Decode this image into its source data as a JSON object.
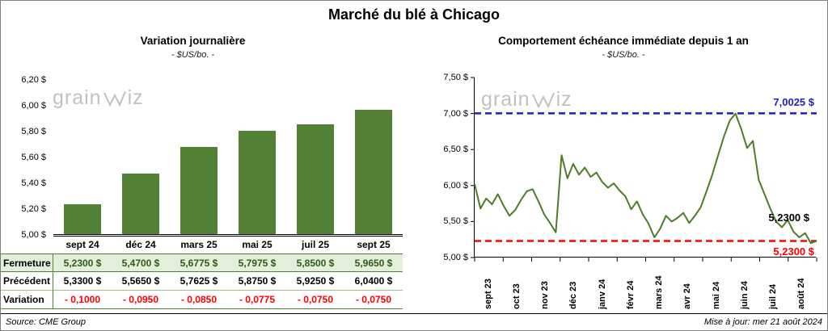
{
  "page_title": "Marché du blé à Chicago",
  "watermark": {
    "prefix": "grain",
    "suffix": "iz"
  },
  "footer": {
    "source": "Source: CME Group",
    "updated": "Mise à jour: mer 21 août 2024"
  },
  "colors": {
    "bar_green": "#538135",
    "line_green": "#4e7d28",
    "fermeture_row_bg": "#e2efd9",
    "annotation_blue": "#1f1fc8",
    "annotation_red": "#ff0000"
  },
  "chart_data": [
    {
      "type": "bar",
      "title": "Variation journalière",
      "subtitle": "- $US/bo. -",
      "categories": [
        "sept 24",
        "déc 24",
        "mars 25",
        "mai 25",
        "juil 25",
        "sept 25"
      ],
      "values": [
        5.23,
        5.47,
        5.6775,
        5.7975,
        5.85,
        5.965
      ],
      "ylim": [
        5.0,
        6.2
      ],
      "yticks": [
        "6,20 $",
        "6,00 $",
        "5,80 $",
        "5,60 $",
        "5,40 $",
        "5,20 $",
        "5,00 $"
      ],
      "grid": false,
      "legend": "none",
      "table_rows": [
        {
          "label": "Fermeture",
          "style": "fermeture",
          "values": [
            "5,2300  $",
            "5,4700  $",
            "5,6775  $",
            "5,7975  $",
            "5,8500  $",
            "5,9650  $"
          ]
        },
        {
          "label": "Précédent",
          "style": "precedent",
          "values": [
            "5,3300  $",
            "5,5650  $",
            "5,7625  $",
            "5,8750  $",
            "5,9250  $",
            "6,0400  $"
          ]
        },
        {
          "label": "Variation",
          "style": "variation",
          "values": [
            "- 0,1000",
            "- 0,0950",
            "- 0,0850",
            "- 0,0775",
            "- 0,0750",
            "- 0,0750"
          ]
        }
      ]
    },
    {
      "type": "line",
      "title": "Comportement échéance immédiate depuis 1 an",
      "subtitle": "- $US/bo. -",
      "x_labels": [
        "sept 23",
        "oct 23",
        "nov 23",
        "déc 23",
        "janv 24",
        "févr 24",
        "mars 24",
        "avr 24",
        "mai 24",
        "juin 24",
        "juil 24",
        "août 24"
      ],
      "ylim": [
        5.0,
        7.5
      ],
      "yticks": [
        "7,50 $",
        "7,00 $",
        "6,50 $",
        "6,00 $",
        "5,50 $",
        "5,00 $"
      ],
      "grid": false,
      "legend": "none",
      "series": [
        {
          "name": "échéance immédiate",
          "color": "#4e7d28",
          "values": [
            6.02,
            5.68,
            5.82,
            5.74,
            5.88,
            5.72,
            5.58,
            5.66,
            5.8,
            5.92,
            5.95,
            5.78,
            5.6,
            5.48,
            5.35,
            6.42,
            6.1,
            6.3,
            6.15,
            6.25,
            6.12,
            6.18,
            6.05,
            5.97,
            6.03,
            5.93,
            5.85,
            5.67,
            5.78,
            5.6,
            5.47,
            5.28,
            5.4,
            5.58,
            5.5,
            5.55,
            5.62,
            5.48,
            5.58,
            5.7,
            5.92,
            6.15,
            6.42,
            6.68,
            6.9,
            7.0,
            6.78,
            6.52,
            6.62,
            6.08,
            5.88,
            5.68,
            5.5,
            5.42,
            5.52,
            5.36,
            5.28,
            5.34,
            5.2,
            5.23
          ]
        }
      ],
      "annotations": [
        {
          "text": "7,0025 $",
          "value": 7.0025,
          "color": "#1f1fc8",
          "line": true
        },
        {
          "text": "5,2300 $",
          "value": 5.23,
          "color": "#000000",
          "line": false
        },
        {
          "text": "5,2300 $",
          "value": 5.23,
          "color": "#ff0000",
          "line": true
        }
      ]
    }
  ]
}
